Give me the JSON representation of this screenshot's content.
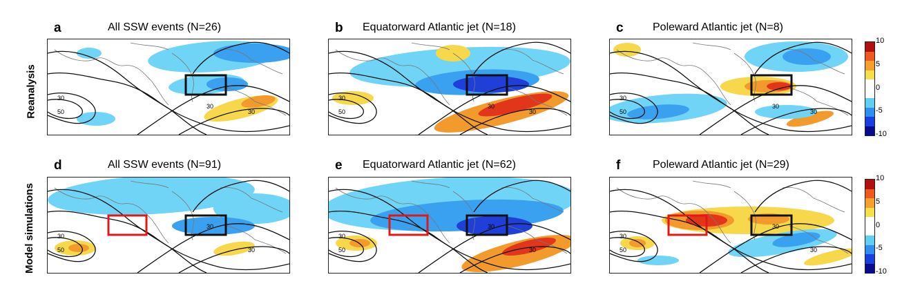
{
  "rows": [
    {
      "label": "Reanalysis"
    },
    {
      "label": "Model simulations"
    }
  ],
  "panels": [
    {
      "letter": "a",
      "title": "All SSW events (N=26)",
      "pattern": "a",
      "red_box": false
    },
    {
      "letter": "b",
      "title": "Equatorward Atlantic jet (N=18)",
      "pattern": "b",
      "red_box": false
    },
    {
      "letter": "c",
      "title": "Poleward Atlantic jet (N=8)",
      "pattern": "c",
      "red_box": false
    },
    {
      "letter": "d",
      "title": "All SSW events (N=91)",
      "pattern": "d",
      "red_box": true
    },
    {
      "letter": "e",
      "title": "Equatorward Atlantic jet (N=62)",
      "pattern": "e",
      "red_box": true
    },
    {
      "letter": "f",
      "title": "Poleward Atlantic jet (N=29)",
      "pattern": "f",
      "red_box": true
    }
  ],
  "contour_labels": [
    "30",
    "50",
    "30",
    "30"
  ],
  "colorbar": {
    "ticks": [
      "10",
      "5",
      "0",
      "-5",
      "-10"
    ],
    "range": [
      -10,
      10
    ],
    "colors": [
      "#0a0a8c",
      "#1a3fe0",
      "#2f8ff0",
      "#5fd0f0",
      "#ffffff",
      "#ffffff",
      "#f5e04a",
      "#f5a02a",
      "#ee5a1e",
      "#b01010"
    ]
  },
  "colors": {
    "neg_strong": "#1f3fd8",
    "neg_mid": "#3aa0f0",
    "neg_light": "#6fd4f5",
    "pos_light": "#f6d84a",
    "pos_mid": "#f39a2c",
    "pos_strong": "#e2361a",
    "box_black": "#111111",
    "box_red": "#e01818"
  }
}
